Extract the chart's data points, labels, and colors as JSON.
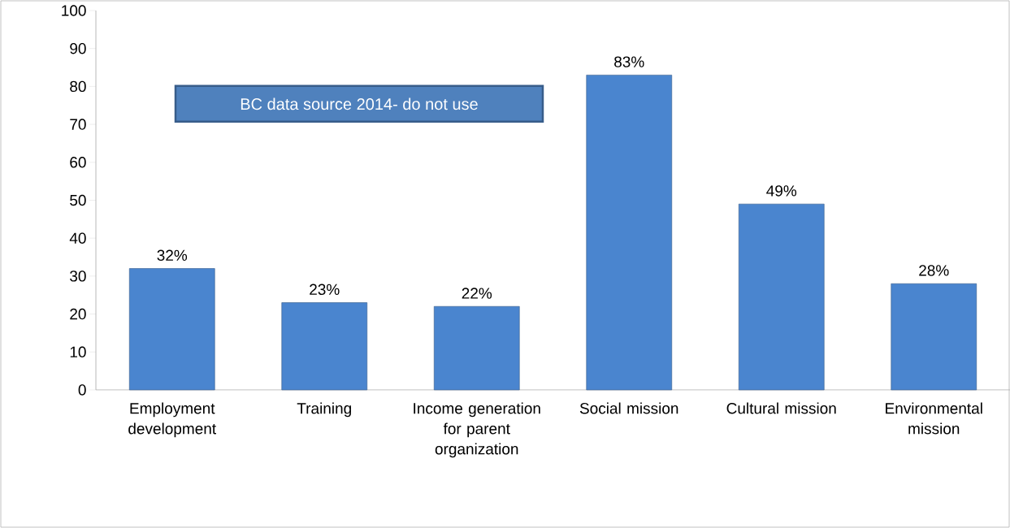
{
  "chart_data": {
    "type": "bar",
    "categories": [
      "Employment development",
      "Training",
      "Income generation for parent organization",
      "Social mission",
      "Cultural mission",
      "Environmental mission"
    ],
    "values": [
      32,
      23,
      22,
      83,
      49,
      28
    ],
    "value_labels": [
      "32%",
      "23%",
      "22%",
      "83%",
      "49%",
      "28%"
    ],
    "color": "#4a85cf",
    "ylim": [
      0,
      100
    ],
    "yticks": [
      0,
      10,
      20,
      30,
      40,
      50,
      60,
      70,
      80,
      90,
      100
    ],
    "annotations": [
      "BC data source 2014- do not use"
    ]
  }
}
